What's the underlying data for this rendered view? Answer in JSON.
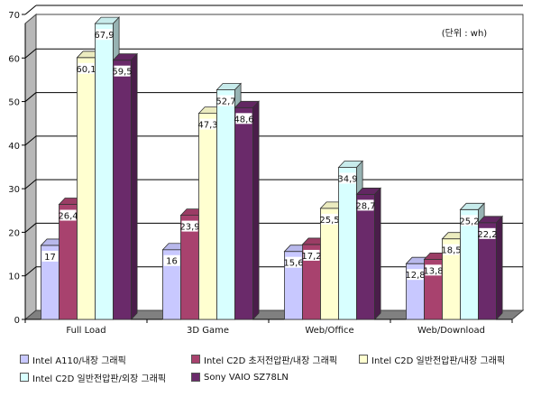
{
  "chart_data": {
    "type": "bar",
    "categories": [
      "Full Load",
      "3D Game",
      "Web/Office",
      "Web/Download"
    ],
    "series": [
      {
        "name": "Intel A110/내장 그래픽",
        "values": [
          17,
          16,
          15.6,
          12.8
        ],
        "color": "#c8c8ff",
        "labels": [
          "17",
          "16",
          "15,6",
          "12,8"
        ]
      },
      {
        "name": "Intel C2D 초저전압판/내장 그래픽",
        "values": [
          26.4,
          23.9,
          17.2,
          13.8
        ],
        "color": "#a8426e",
        "labels": [
          "26,4",
          "23,9",
          "17,2",
          "13,8"
        ]
      },
      {
        "name": "Intel C2D 일반전압판/내장 그래픽",
        "values": [
          60.1,
          47.3,
          25.5,
          18.5
        ],
        "color": "#ffffd0",
        "labels": [
          "60,1",
          "47,3",
          "25,5",
          "18,5"
        ]
      },
      {
        "name": "Intel C2D 일반전압판/외장 그래픽",
        "values": [
          67.9,
          52.7,
          34.9,
          25.2
        ],
        "color": "#d8ffff",
        "labels": [
          "67,9",
          "52,7",
          "34,9",
          "25,2"
        ]
      },
      {
        "name": "Sony VAIO SZ78LN",
        "values": [
          59.5,
          48.6,
          28.7,
          22.2
        ],
        "color": "#6a2a6a",
        "labels": [
          "59,5",
          "48,6",
          "28,7",
          "22,2"
        ]
      }
    ],
    "yticks": [
      "0",
      "10",
      "20",
      "30",
      "40",
      "50",
      "60",
      "70"
    ],
    "ylim": [
      0,
      70
    ],
    "unit_note": "(단위 : wh)",
    "grid": true,
    "legend_position": "bottom"
  }
}
